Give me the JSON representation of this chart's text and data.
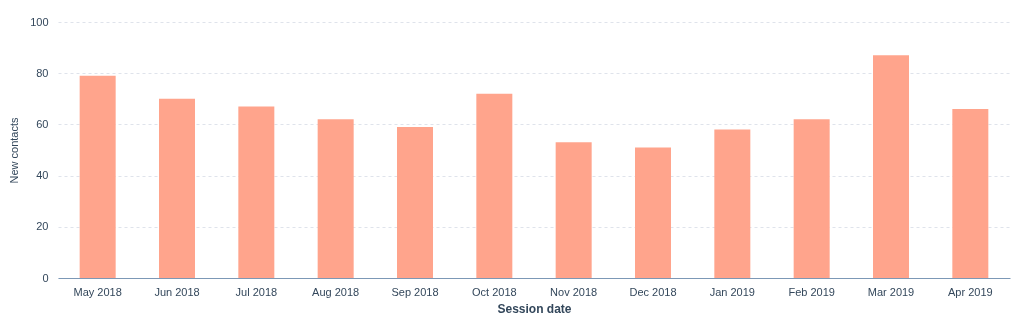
{
  "chart_data": {
    "type": "bar",
    "xlabel": "Session date",
    "ylabel": "New contacts",
    "categories": [
      "May 2018",
      "Jun 2018",
      "Jul 2018",
      "Aug 2018",
      "Sep 2018",
      "Oct 2018",
      "Nov 2018",
      "Dec 2018",
      "Jan 2019",
      "Feb 2019",
      "Mar 2019",
      "Apr 2019"
    ],
    "values": [
      79,
      70,
      67,
      62,
      59,
      72,
      53,
      51,
      58,
      62,
      87,
      66
    ],
    "color": "#ffa48c",
    "ylim": [
      0,
      100
    ],
    "yticks": [
      0,
      20,
      40,
      60,
      80,
      100
    ],
    "grid": "y"
  }
}
